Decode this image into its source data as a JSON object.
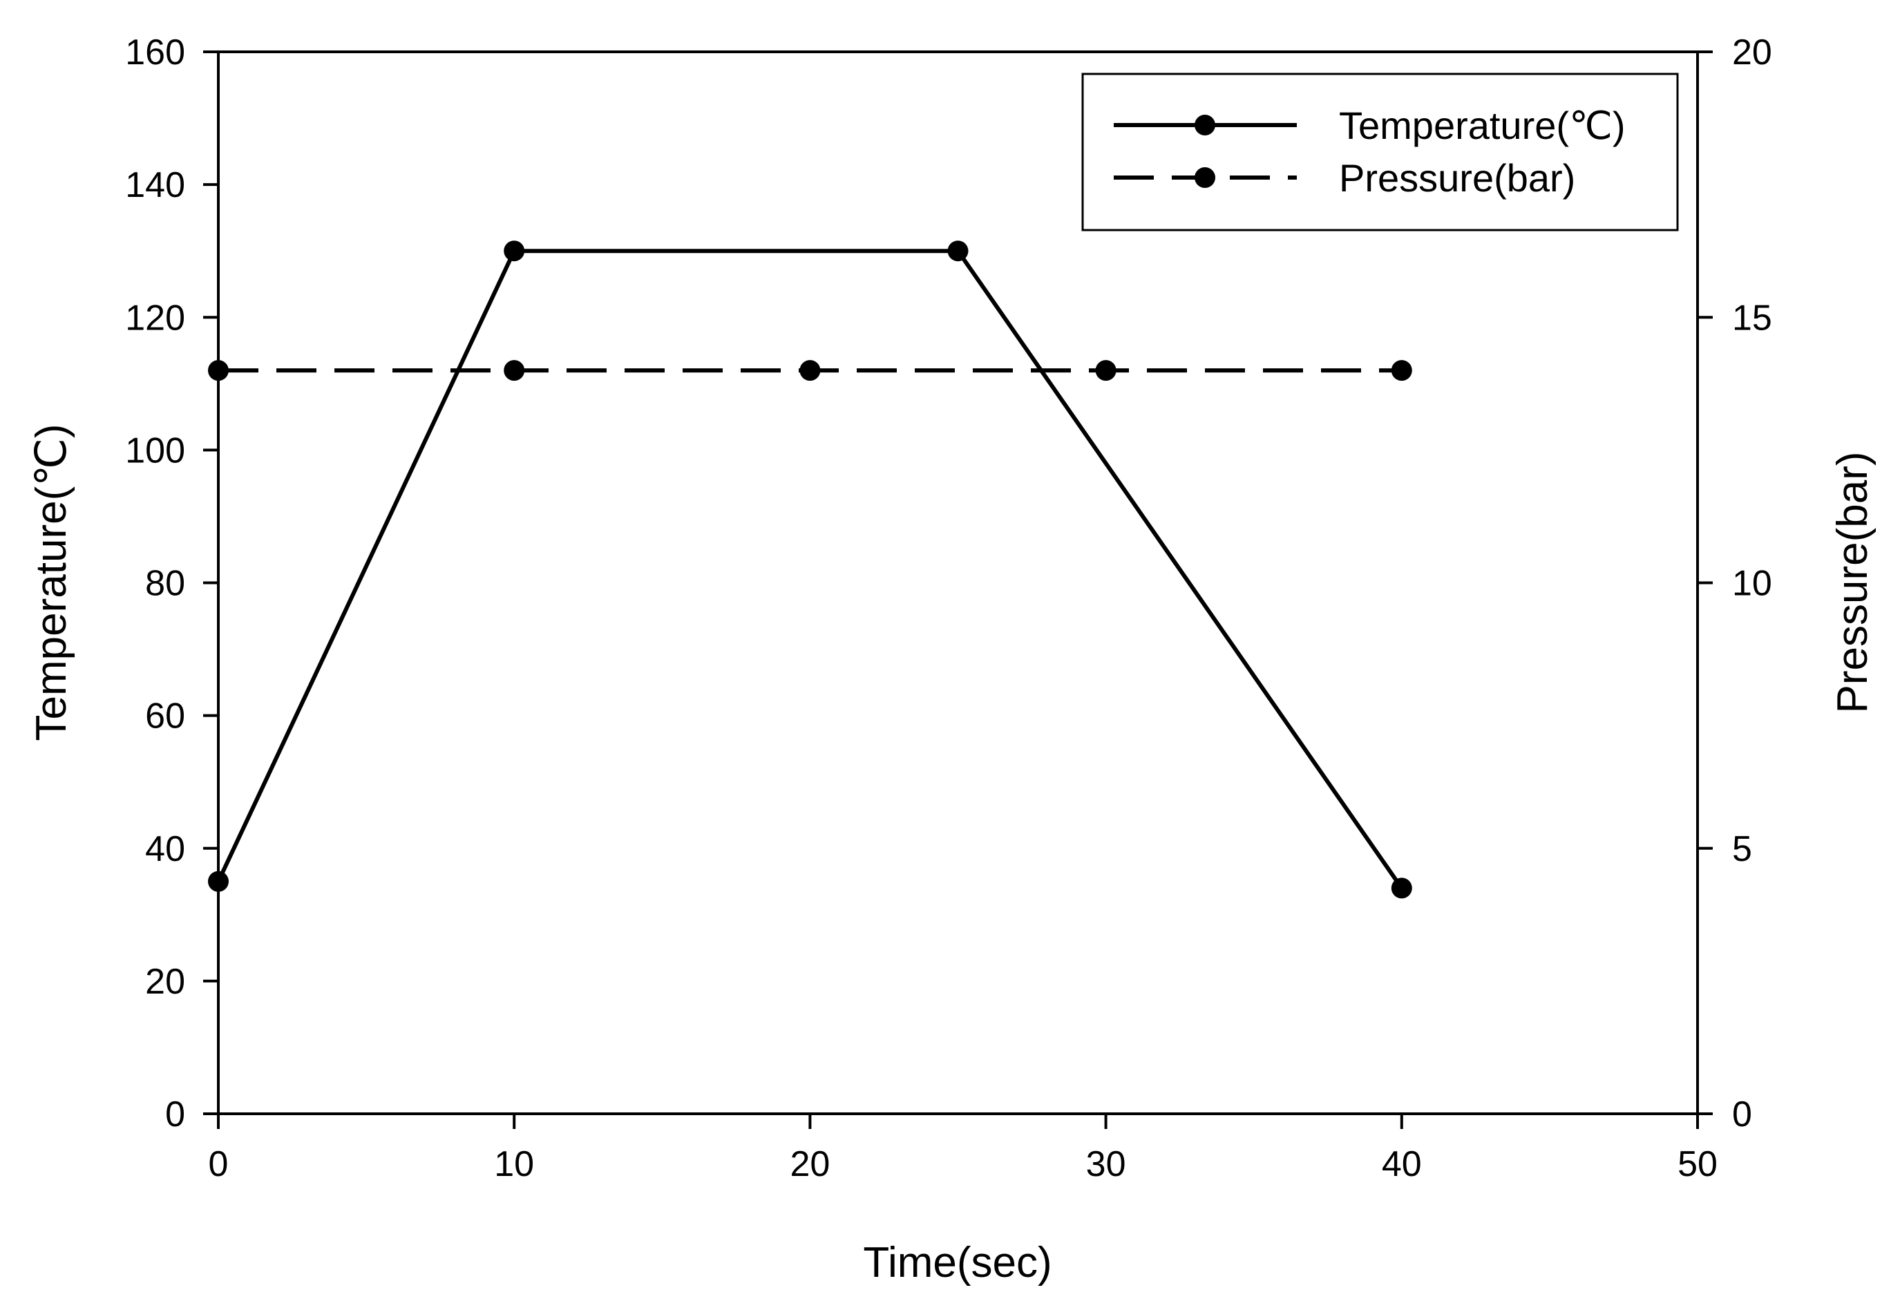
{
  "chart_data": {
    "type": "line",
    "title": "",
    "xlabel": "Time(sec)",
    "ylabel": "Temperature(℃)",
    "y2label": "Pressure(bar)",
    "xlim": [
      0,
      50
    ],
    "ylim": [
      0,
      160
    ],
    "y2lim": [
      0,
      20
    ],
    "x_ticks": [
      0,
      10,
      20,
      30,
      40,
      50
    ],
    "y_ticks": [
      0,
      20,
      40,
      60,
      80,
      100,
      120,
      140,
      160
    ],
    "y2_ticks": [
      0,
      5,
      10,
      15,
      20
    ],
    "x_tick_labels": [
      "0",
      "10",
      "20",
      "30",
      "40",
      "50"
    ],
    "y_tick_labels": [
      "0",
      "20",
      "40",
      "60",
      "80",
      "100",
      "120",
      "140",
      "160"
    ],
    "y2_tick_labels": [
      "0",
      "5",
      "10",
      "15",
      "20"
    ],
    "grid": false,
    "legend_position": "top-right",
    "series": [
      {
        "name": "Temperature(℃)",
        "axis": "left",
        "line_style": "solid",
        "marker": "circle",
        "color": "#000000",
        "x": [
          0,
          10,
          25,
          40
        ],
        "values": [
          35,
          130,
          130,
          34
        ]
      },
      {
        "name": "Pressure(bar)",
        "axis": "right",
        "line_style": "dashed",
        "marker": "circle",
        "color": "#000000",
        "x": [
          0,
          10,
          20,
          30,
          40
        ],
        "values": [
          14,
          14,
          14,
          14,
          14
        ]
      }
    ]
  }
}
